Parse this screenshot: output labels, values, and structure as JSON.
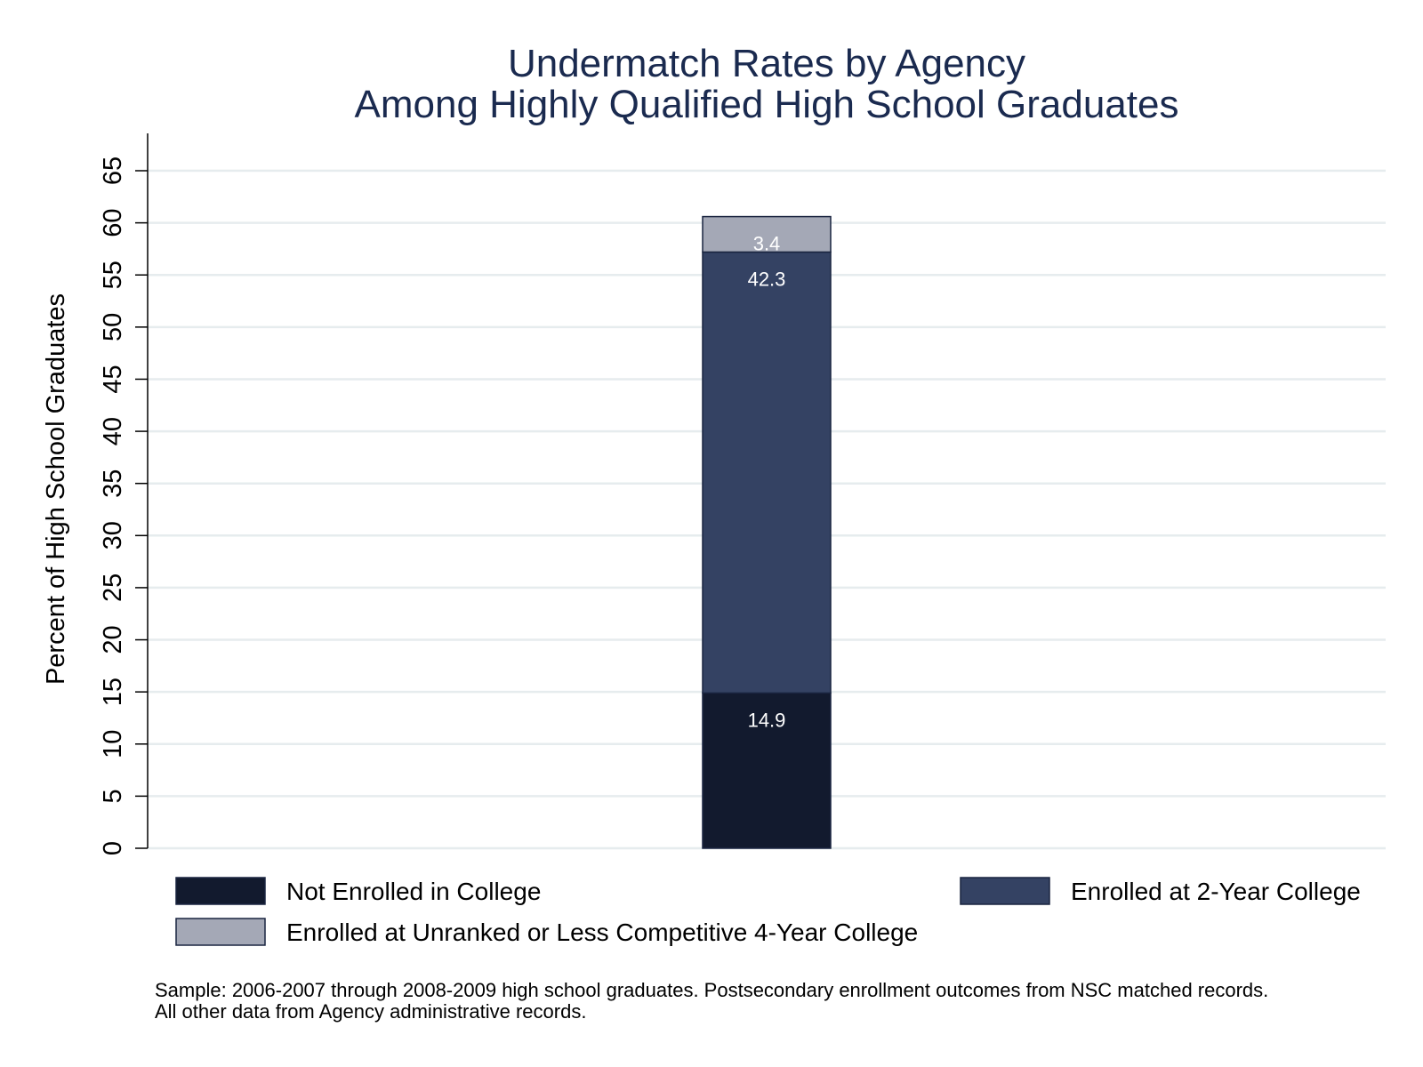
{
  "chart_data": {
    "type": "bar",
    "stacked": true,
    "title": [
      "Undermatch Rates by Agency",
      "Among Highly Qualified High School Graduates"
    ],
    "ylabel": "Percent of High School Graduates",
    "xlabel": "",
    "ylim": [
      0,
      65
    ],
    "yticks": [
      "0",
      "5",
      "10",
      "15",
      "20",
      "25",
      "30",
      "35",
      "40",
      "45",
      "50",
      "55",
      "60",
      "65"
    ],
    "grid": true,
    "categories": [
      ""
    ],
    "series": [
      {
        "name": "Not Enrolled in College",
        "values": [
          14.9
        ],
        "label": "14.9",
        "color": "#121a2e"
      },
      {
        "name": "Enrolled at 2-Year College",
        "values": [
          42.3
        ],
        "label": "42.3",
        "color": "#344263"
      },
      {
        "name": "Enrolled at Unranked or Less Competitive 4-Year College",
        "values": [
          3.4
        ],
        "label": "3.4",
        "color": "#a4a8b6"
      }
    ],
    "legend_placement": "bottom",
    "note": [
      "Sample: 2006-2007 through 2008-2009 high school graduates. Postsecondary enrollment outcomes from NSC matched records.",
      "All other data from Agency administrative records."
    ]
  }
}
